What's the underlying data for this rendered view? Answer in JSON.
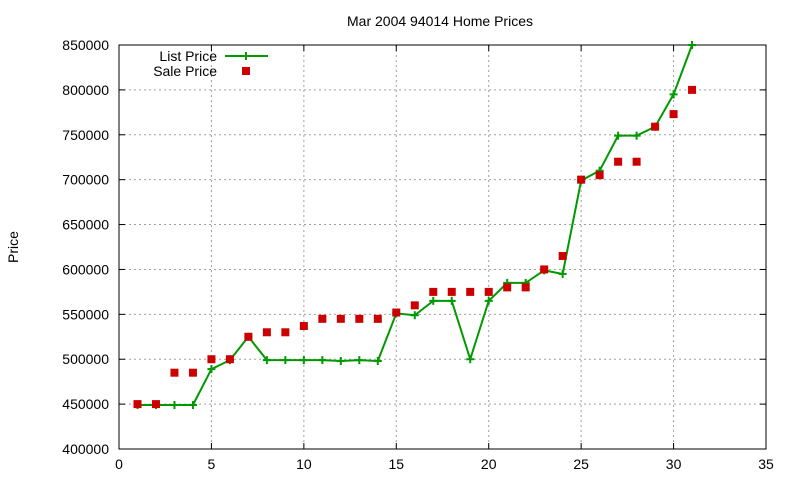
{
  "chart_data": {
    "type": "line",
    "title": "Mar 2004 94014 Home Prices",
    "xlabel": "",
    "ylabel": "Price",
    "xlim": [
      0,
      35
    ],
    "ylim": [
      400000,
      850000
    ],
    "xticks": [
      0,
      5,
      10,
      15,
      20,
      25,
      30,
      35
    ],
    "yticks": [
      400000,
      450000,
      500000,
      550000,
      600000,
      650000,
      700000,
      750000,
      800000,
      850000
    ],
    "grid": true,
    "legend_position": "top-left",
    "series": [
      {
        "name": "List Price",
        "style": "line-plus",
        "color": "#009900",
        "x": [
          1,
          2,
          3,
          4,
          5,
          6,
          7,
          8,
          9,
          10,
          11,
          12,
          13,
          14,
          15,
          16,
          17,
          18,
          19,
          20,
          21,
          22,
          23,
          24,
          25,
          26,
          27,
          28,
          29,
          30,
          31
        ],
        "y": [
          449000,
          449000,
          449000,
          449000,
          489000,
          499000,
          525000,
          499000,
          499000,
          499000,
          499000,
          498000,
          499000,
          498000,
          551000,
          549000,
          565000,
          565000,
          500000,
          565000,
          585000,
          585000,
          599000,
          595000,
          699000,
          710000,
          749000,
          749000,
          759000,
          795000,
          850000
        ]
      },
      {
        "name": "Sale Price",
        "style": "square",
        "color": "#cc0000",
        "x": [
          1,
          2,
          3,
          4,
          5,
          6,
          7,
          8,
          9,
          10,
          11,
          12,
          13,
          14,
          15,
          16,
          17,
          18,
          19,
          20,
          21,
          22,
          23,
          24,
          25,
          26,
          27,
          28,
          29,
          30,
          31
        ],
        "y": [
          450000,
          450000,
          485000,
          485000,
          500000,
          500000,
          525000,
          530000,
          530000,
          537000,
          545000,
          545000,
          545000,
          545000,
          552000,
          560000,
          575000,
          575000,
          575000,
          575000,
          580000,
          580000,
          600000,
          615000,
          700000,
          705000,
          720000,
          720000,
          759000,
          773000,
          800000
        ]
      }
    ]
  }
}
